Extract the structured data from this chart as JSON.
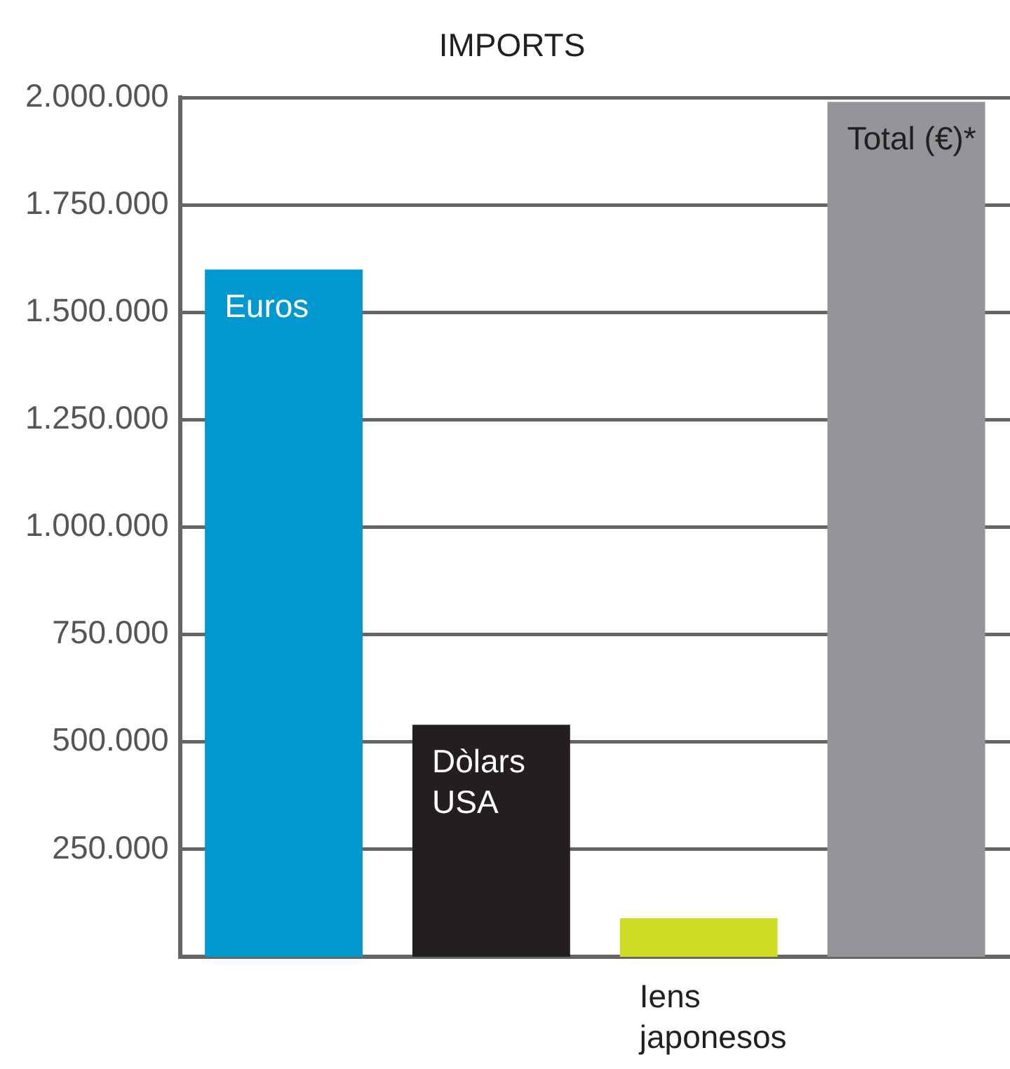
{
  "chart_data": {
    "type": "bar",
    "title": "IMPORTS",
    "categories": [
      "Euros",
      "Dòlars USA",
      "Iens japonesos",
      "Total (€)*"
    ],
    "values": [
      1600000,
      540000,
      90000,
      1990000
    ],
    "colors": [
      "#0098cf",
      "#231f20",
      "#cfdc26",
      "#939598"
    ],
    "ylim": [
      0,
      2000000
    ],
    "yticks": [
      {
        "value": 250000,
        "label": "250.000"
      },
      {
        "value": 500000,
        "label": "500.000"
      },
      {
        "value": 750000,
        "label": "750.000"
      },
      {
        "value": 1000000,
        "label": "1.000.000"
      },
      {
        "value": 1250000,
        "label": "1.250.000"
      },
      {
        "value": 1500000,
        "label": "1.500.000"
      },
      {
        "value": 1750000,
        "label": "1.750.000"
      },
      {
        "value": 2000000,
        "label": "2.000.000"
      }
    ],
    "grid": "y"
  }
}
